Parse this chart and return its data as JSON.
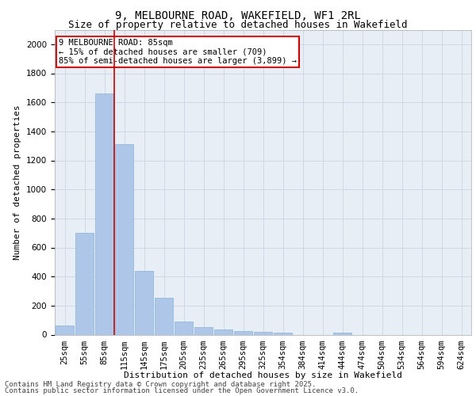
{
  "title_line1": "9, MELBOURNE ROAD, WAKEFIELD, WF1 2RL",
  "title_line2": "Size of property relative to detached houses in Wakefield",
  "xlabel": "Distribution of detached houses by size in Wakefield",
  "ylabel": "Number of detached properties",
  "categories": [
    "25sqm",
    "55sqm",
    "85sqm",
    "115sqm",
    "145sqm",
    "175sqm",
    "205sqm",
    "235sqm",
    "265sqm",
    "295sqm",
    "325sqm",
    "354sqm",
    "384sqm",
    "414sqm",
    "444sqm",
    "474sqm",
    "504sqm",
    "534sqm",
    "564sqm",
    "594sqm",
    "624sqm"
  ],
  "values": [
    65,
    700,
    1660,
    1310,
    440,
    255,
    90,
    52,
    35,
    25,
    20,
    15,
    0,
    0,
    15,
    0,
    0,
    0,
    0,
    0,
    0
  ],
  "bar_color": "#aec6e8",
  "bar_edge_color": "#8ab4d8",
  "vline_x_index": 2,
  "vline_color": "#cc0000",
  "annotation_line1": "9 MELBOURNE ROAD: 85sqm",
  "annotation_line2": "← 15% of detached houses are smaller (709)",
  "annotation_line3": "85% of semi-detached houses are larger (3,899) →",
  "annotation_box_color": "#ffffff",
  "annotation_box_edge_color": "#cc0000",
  "ylim": [
    0,
    2100
  ],
  "yticks": [
    0,
    200,
    400,
    600,
    800,
    1000,
    1200,
    1400,
    1600,
    1800,
    2000
  ],
  "grid_color": "#d0d8e4",
  "bg_color": "#e8eef5",
  "footer_line1": "Contains HM Land Registry data © Crown copyright and database right 2025.",
  "footer_line2": "Contains public sector information licensed under the Open Government Licence v3.0.",
  "title_fontsize": 10,
  "subtitle_fontsize": 9,
  "axis_label_fontsize": 8,
  "tick_fontsize": 7.5,
  "annotation_fontsize": 7.5,
  "footer_fontsize": 6.5
}
